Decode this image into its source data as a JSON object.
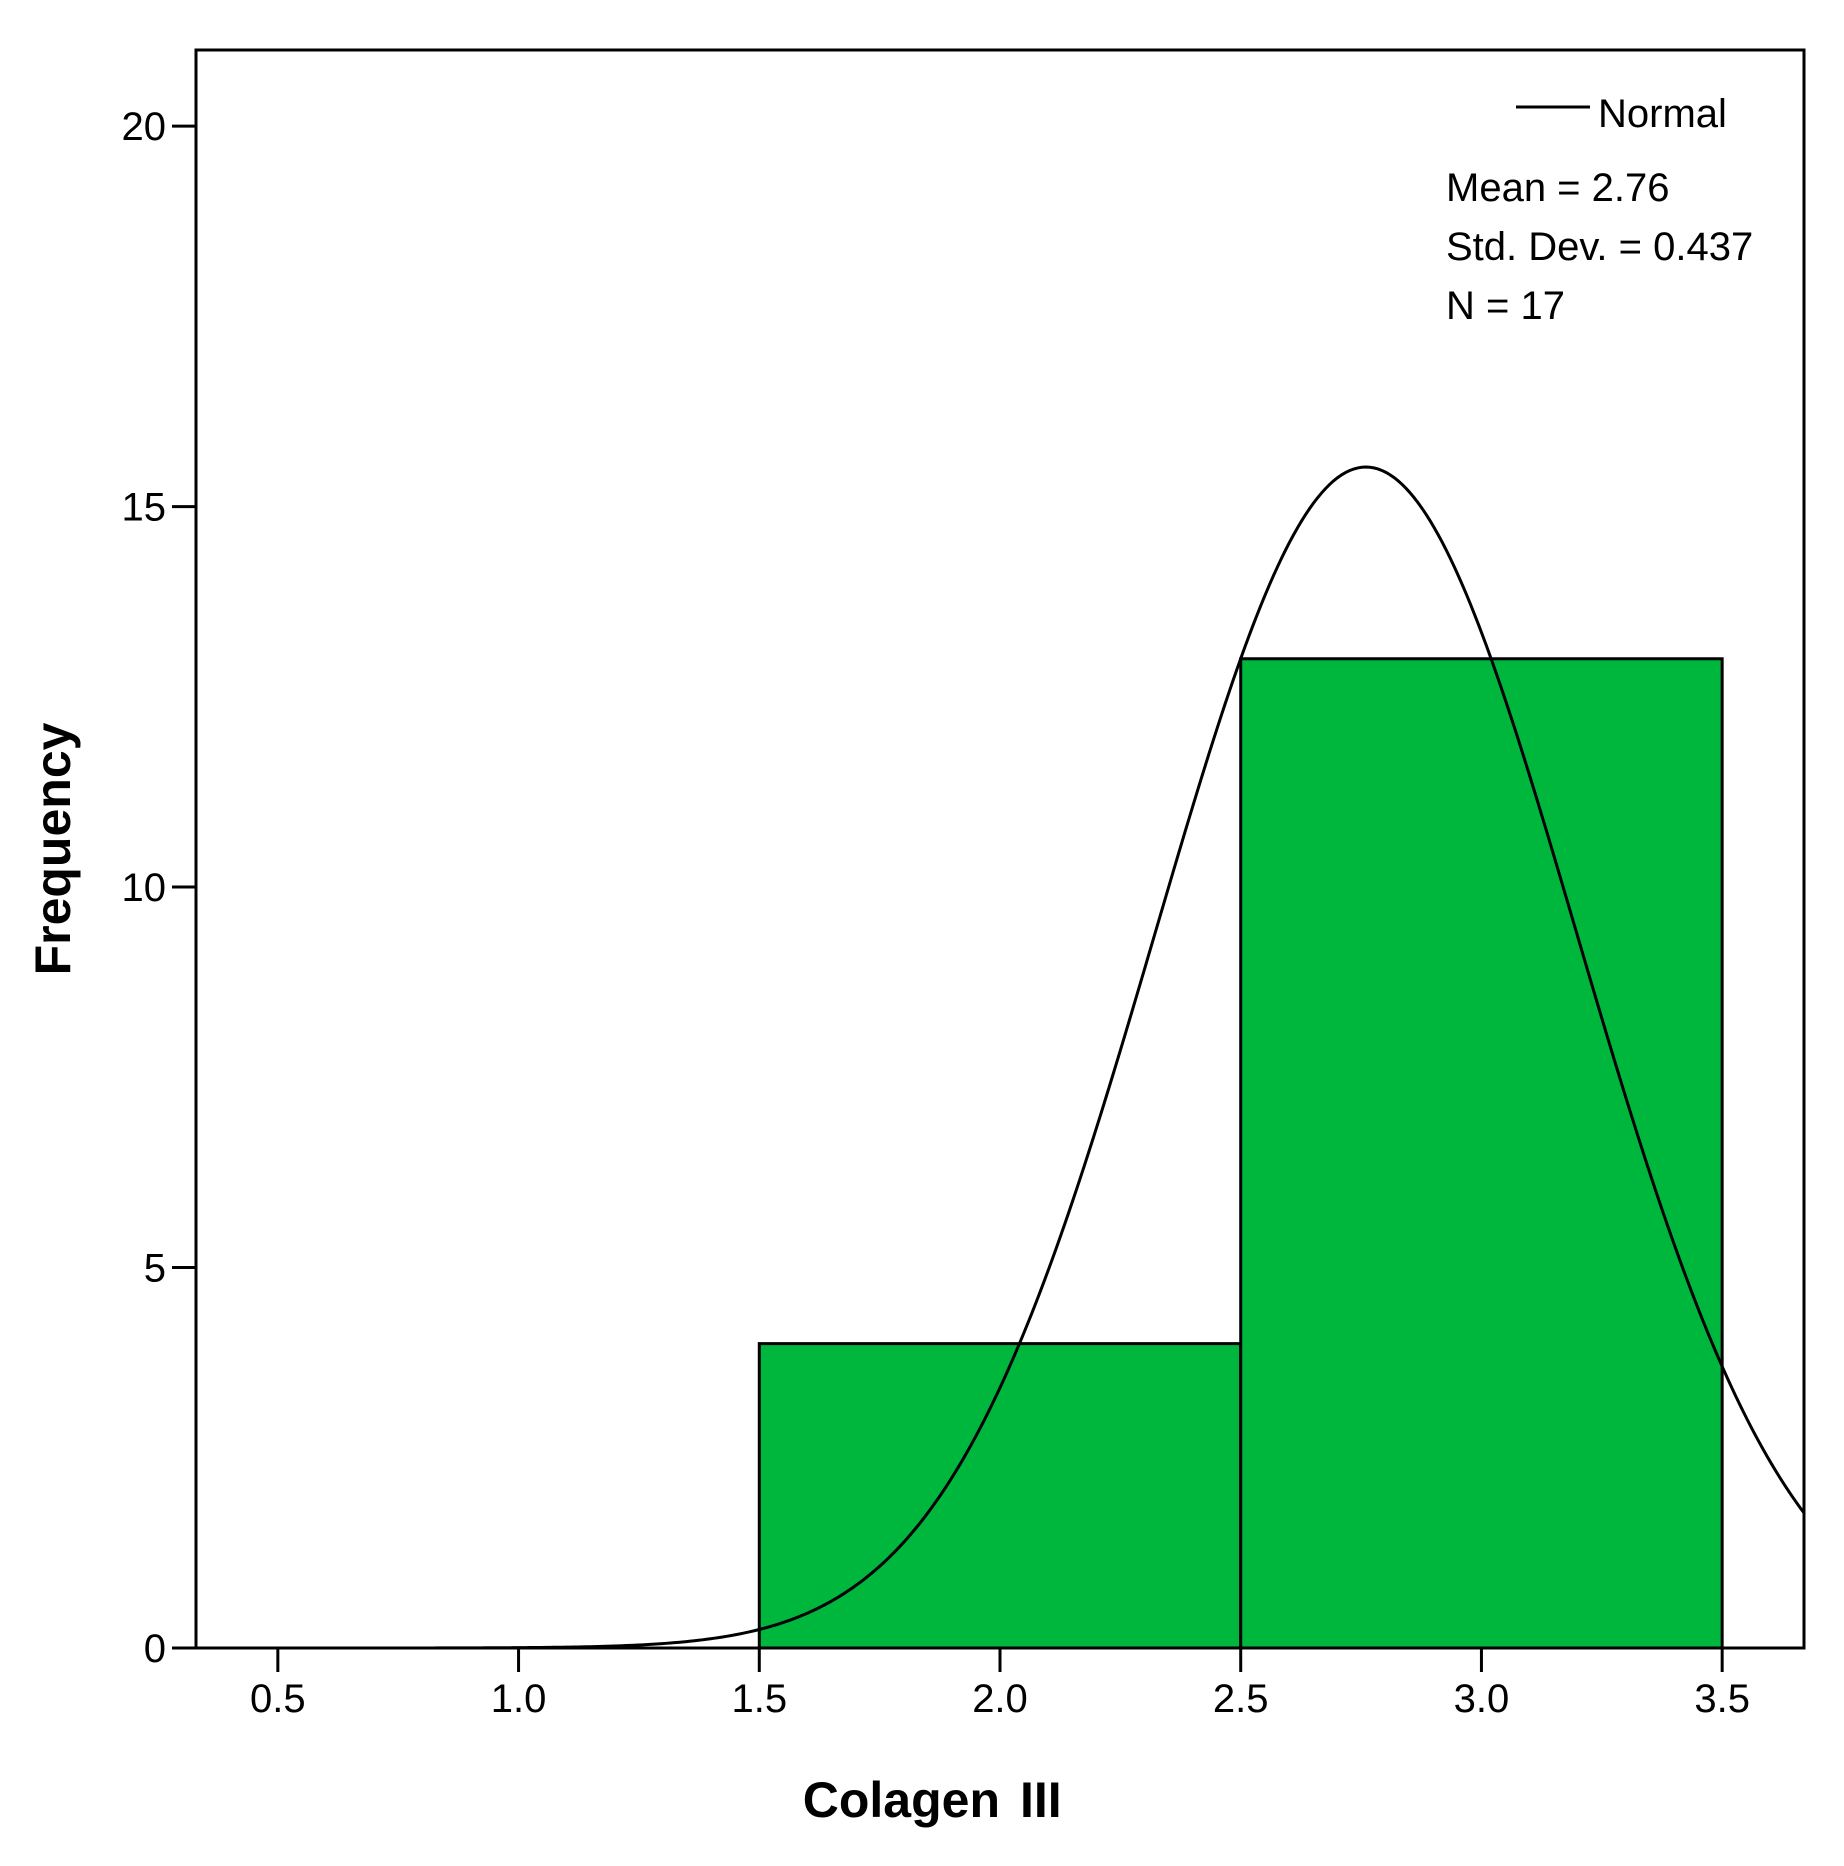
{
  "chart_data": {
    "type": "bar",
    "subtype": "histogram",
    "xlabel": "Colagen",
    "xlabel_suffix": "III",
    "ylabel": "Frequency",
    "xlim": [
      0.33,
      3.67
    ],
    "ylim": [
      0,
      21
    ],
    "x_ticks": [
      "0.5",
      "1.0",
      "1.5",
      "2.0",
      "2.5",
      "3.0",
      "3.5"
    ],
    "y_ticks": [
      "0",
      "5",
      "10",
      "15",
      "20"
    ],
    "bins": [
      {
        "start": 1.5,
        "end": 2.5,
        "count": 4
      },
      {
        "start": 2.5,
        "end": 3.5,
        "count": 13
      }
    ],
    "bar_color": "#00b73d",
    "curve": {
      "name": "Normal",
      "mean": 2.76,
      "std": 0.437,
      "n": 17,
      "bin_width": 1.0
    },
    "legend": {
      "label": "Normal",
      "placement": "top-right"
    },
    "stats": {
      "mean_label": "Mean = 2.76",
      "std_label": "Std. Dev. = 0.437",
      "n_label": "N = 17"
    },
    "grid": false
  }
}
